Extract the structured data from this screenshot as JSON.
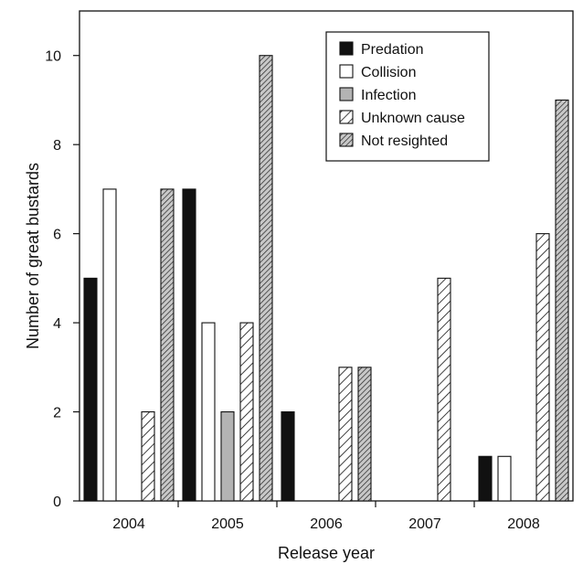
{
  "chart_data": {
    "type": "bar",
    "xlabel": "Release year",
    "ylabel": "Number of great bustards",
    "categories": [
      "2004",
      "2005",
      "2006",
      "2007",
      "2008"
    ],
    "ylim": [
      0,
      11
    ],
    "yticks": [
      0,
      2,
      4,
      6,
      8,
      10
    ],
    "grid": false,
    "legend_position": "top-right",
    "series": [
      {
        "name": "Predation",
        "values": [
          5,
          7,
          2,
          0,
          1
        ],
        "fill": "#111111",
        "pattern": "solid"
      },
      {
        "name": "Collision",
        "values": [
          7,
          4,
          0,
          0,
          1
        ],
        "fill": "#ffffff",
        "pattern": "solid"
      },
      {
        "name": "Infection",
        "values": [
          0,
          2,
          0,
          0,
          0
        ],
        "fill": "#b3b3b3",
        "pattern": "solid"
      },
      {
        "name": "Unknown cause",
        "values": [
          2,
          4,
          3,
          5,
          6
        ],
        "fill": "#ffffff",
        "pattern": "hatch-wide"
      },
      {
        "name": "Not resighted",
        "values": [
          7,
          10,
          3,
          0,
          9
        ],
        "fill": "#c8c8c8",
        "pattern": "hatch-dense"
      }
    ]
  }
}
